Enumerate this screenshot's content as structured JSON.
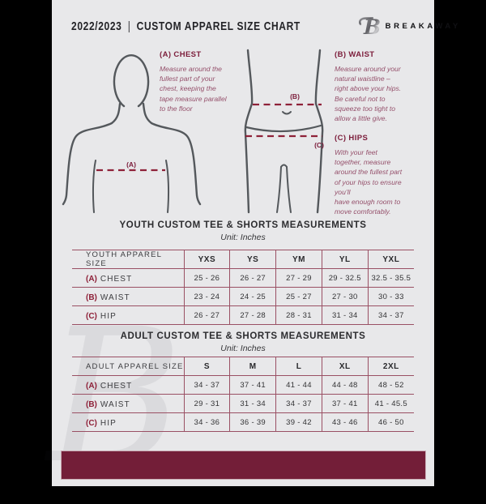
{
  "header": {
    "year": "2022/2023",
    "divider": "|",
    "title": "CUSTOM APPAREL SIZE CHART",
    "brand": "BREAKAWAY",
    "logo_letter": "B"
  },
  "guide": {
    "chest": {
      "heading": "(A) CHEST",
      "marker": "(A)",
      "description": "Measure around the\nfullest part of your\nchest, keeping the\ntape measure parallel\nto the floor"
    },
    "waist": {
      "heading": "(B) WAIST",
      "marker": "(B)",
      "description": "Measure around your\nnatural waistline –\nright above your hips.\nBe careful not to\nsqueeze too tight to\nallow a little give."
    },
    "hips": {
      "heading": "(C) HIPS",
      "marker": "(C)",
      "description": "With your feet\ntogether, measure\naround the fullest part\nof your hips to ensure\nyou’ll\nhave enough room to\nmove comfortably."
    }
  },
  "youth_table": {
    "title": "YOUTH CUSTOM TEE & SHORTS MEASUREMENTS",
    "unit": "Unit: Inches",
    "size_label": "YOUTH APPAREL SIZE",
    "sizes": [
      "YXS",
      "YS",
      "YM",
      "YL",
      "YXL"
    ],
    "rows": [
      {
        "key": "(A)",
        "label": "CHEST",
        "values": [
          "25 - 26",
          "26 - 27",
          "27 - 29",
          "29 - 32.5",
          "32.5 - 35.5"
        ]
      },
      {
        "key": "(B)",
        "label": "WAIST",
        "values": [
          "23 - 24",
          "24 - 25",
          "25 - 27",
          "27 - 30",
          "30 - 33"
        ]
      },
      {
        "key": "(C)",
        "label": "HIP",
        "values": [
          "26 - 27",
          "27 - 28",
          "28 - 31",
          "31 - 34",
          "34 - 37"
        ]
      }
    ]
  },
  "adult_table": {
    "title": "ADULT CUSTOM TEE & SHORTS MEASUREMENTS",
    "unit": "Unit: Inches",
    "size_label": "ADULT APPAREL SIZE",
    "sizes": [
      "S",
      "M",
      "L",
      "XL",
      "2XL"
    ],
    "rows": [
      {
        "key": "(A)",
        "label": "CHEST",
        "values": [
          "34 - 37",
          "37 - 41",
          "41 - 44",
          "44 - 48",
          "48 - 52"
        ]
      },
      {
        "key": "(B)",
        "label": "WAIST",
        "values": [
          "29 - 31",
          "31 - 34",
          "34 - 37",
          "37 - 41",
          "41 - 45.5"
        ]
      },
      {
        "key": "(C)",
        "label": "HIP",
        "values": [
          "34 - 36",
          "36 - 39",
          "39 - 42",
          "43 - 46",
          "46 - 50"
        ]
      }
    ]
  },
  "colors": {
    "page_bg": "#e8e8ea",
    "letterbox": "#000000",
    "maroon_heading": "#7c1d3b",
    "maroon_dash": "#8e2138",
    "table_line": "#9a5064",
    "footer_bar": "#731e38",
    "figure_outline": "#54585c"
  }
}
